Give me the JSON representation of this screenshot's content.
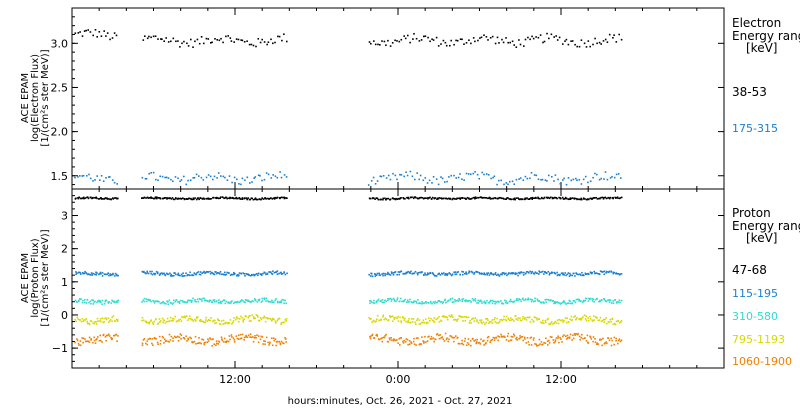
{
  "figure": {
    "xlabel": "hours:minutes, Oct. 26, 2021 - Oct. 27, 2021",
    "x_ticks": [
      "12:00",
      "0:00",
      "12:00"
    ]
  },
  "chart_data": [
    {
      "type": "scatter",
      "panel": "electron",
      "ylabel_lines": [
        "ACE EPAM",
        "log(Electron Flux)",
        "[1/(cm²s ster MeV)]"
      ],
      "xlim_hours": [
        0,
        48
      ],
      "ylim": [
        1.35,
        3.4
      ],
      "y_ticks": [
        1.5,
        2.0,
        2.5,
        3.0
      ],
      "y_tick_labels": [
        "1.5",
        "2.0",
        "2.5",
        "3.0"
      ],
      "data_gaps_hours": [
        [
          3.4,
          5.1
        ],
        [
          15.8,
          21.8
        ]
      ],
      "data_end_hours": 40.4,
      "legend_title_lines": [
        "Electron",
        "Energy ranges",
        "[keV]"
      ],
      "series": [
        {
          "name": "38-53",
          "color": "#000000",
          "level": 3.04,
          "spread": 0.05,
          "show_label": true
        },
        {
          "name": "175-315",
          "color": "#1a7fd0",
          "level": 1.48,
          "spread": 0.05,
          "show_label": true
        }
      ]
    },
    {
      "type": "scatter",
      "panel": "proton",
      "ylabel_lines": [
        "ACE EPAM",
        "log(Proton Flux)",
        "[1/(cm²s ster MeV)]"
      ],
      "xlim_hours": [
        0,
        48
      ],
      "ylim": [
        -1.6,
        3.8
      ],
      "y_ticks": [
        -1,
        0,
        1,
        2,
        3
      ],
      "y_tick_labels": [
        "−1",
        "0",
        "1",
        "2",
        "3"
      ],
      "data_gaps_hours": [
        [
          3.4,
          5.1
        ],
        [
          15.8,
          21.8
        ]
      ],
      "data_end_hours": 40.4,
      "legend_title_lines": [
        "Proton",
        "Energy ranges",
        "[keV]"
      ],
      "series": [
        {
          "name": "47-68",
          "color": "#000000",
          "level": 3.54,
          "spread": 0.025,
          "show_label": true
        },
        {
          "name": "115-195",
          "color": "#1a7fd0",
          "level": 1.27,
          "spread": 0.05,
          "show_label": true
        },
        {
          "name": "310-580",
          "color": "#2fdcd0",
          "level": 0.44,
          "spread": 0.06,
          "show_label": true
        },
        {
          "name": "795-1193",
          "color": "#d8d800",
          "level": -0.12,
          "spread": 0.09,
          "show_label": true
        },
        {
          "name": "1060-1900",
          "color": "#f08000",
          "level": -0.72,
          "spread": 0.12,
          "show_label": true
        }
      ]
    }
  ]
}
